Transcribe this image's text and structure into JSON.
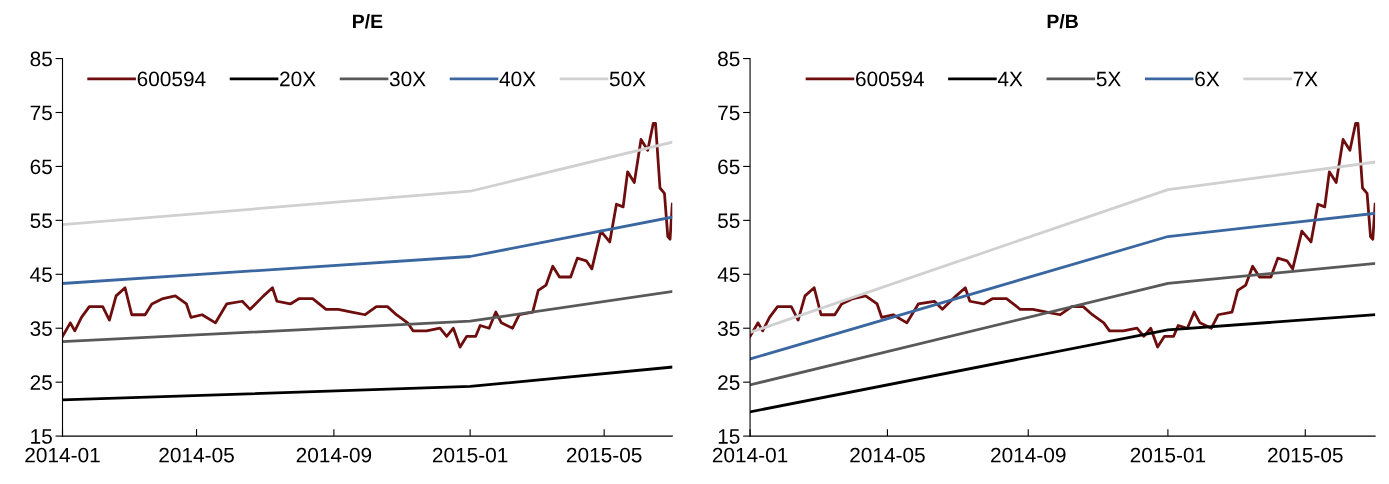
{
  "chart_data": [
    {
      "type": "line",
      "title": "P/E",
      "xlim": [
        "2014-01-01",
        "2015-07-01"
      ],
      "ylim": [
        15,
        85
      ],
      "yticks": [
        15,
        25,
        35,
        45,
        55,
        65,
        75,
        85
      ],
      "xticks": [
        {
          "value": "2014-01-01",
          "label": "2014-01"
        },
        {
          "value": "2014-05-01",
          "label": "2014-05"
        },
        {
          "value": "2014-09-01",
          "label": "2014-09"
        },
        {
          "value": "2015-01-01",
          "label": "2015-01"
        },
        {
          "value": "2015-05-01",
          "label": "2015-05"
        }
      ],
      "grid": false,
      "legend": "top",
      "line_style": "solid",
      "marker": "none",
      "series": [
        {
          "name": "600594",
          "color": "#6e0d0d",
          "x": [
            "2014-01-01",
            "2014-01-08",
            "2014-01-12",
            "2014-01-18",
            "2014-01-25",
            "2014-02-06",
            "2014-02-12",
            "2014-02-18",
            "2014-02-26",
            "2014-03-04",
            "2014-03-16",
            "2014-03-22",
            "2014-04-01",
            "2014-04-12",
            "2014-04-22",
            "2014-04-26",
            "2014-05-06",
            "2014-05-18",
            "2014-05-28",
            "2014-06-11",
            "2014-06-18",
            "2014-06-30",
            "2014-07-08",
            "2014-07-12",
            "2014-07-24",
            "2014-08-01",
            "2014-08-13",
            "2014-08-25",
            "2014-09-05",
            "2014-09-17",
            "2014-09-29",
            "2014-10-09",
            "2014-10-19",
            "2014-10-27",
            "2014-11-06",
            "2014-11-11",
            "2014-11-23",
            "2014-12-05",
            "2014-12-11",
            "2014-12-17",
            "2014-12-23",
            "2014-12-29",
            "2015-01-06",
            "2015-01-10",
            "2015-01-18",
            "2015-01-24",
            "2015-01-29",
            "2015-02-08",
            "2015-02-14",
            "2015-02-26",
            "2015-03-03",
            "2015-03-10",
            "2015-03-16",
            "2015-03-22",
            "2015-04-01",
            "2015-04-07",
            "2015-04-15",
            "2015-04-20",
            "2015-04-28",
            "2015-05-06",
            "2015-05-12",
            "2015-05-18",
            "2015-05-22",
            "2015-05-28",
            "2015-06-03",
            "2015-06-09",
            "2015-06-14",
            "2015-06-16",
            "2015-06-20",
            "2015-06-24",
            "2015-06-27",
            "2015-06-29",
            "2015-07-01"
          ],
          "values": [
            33.5,
            36,
            34.5,
            37,
            39,
            39,
            36.5,
            41,
            42.5,
            37.5,
            37.5,
            39.5,
            40.5,
            41,
            39.5,
            37,
            37.5,
            36,
            39.5,
            40,
            38.5,
            41,
            42.5,
            40,
            39.5,
            40.5,
            40.5,
            38.5,
            38.5,
            38,
            37.5,
            39,
            39,
            37.5,
            36,
            34.5,
            34.5,
            35,
            33.5,
            35,
            31.5,
            33.5,
            33.5,
            35.5,
            35,
            38,
            36,
            35,
            37.5,
            38,
            42,
            43,
            46.5,
            44.5,
            44.5,
            48,
            47.5,
            46,
            53,
            51,
            58,
            57.5,
            64,
            62,
            70,
            68,
            73,
            73,
            61,
            60,
            52,
            51.5,
            58
          ]
        },
        {
          "name": "20X",
          "color": "#000000",
          "x": [
            "2014-01-01",
            "2015-01-01",
            "2015-07-01"
          ],
          "values": [
            21.7,
            24.2,
            27.8
          ]
        },
        {
          "name": "30X",
          "color": "#595959",
          "x": [
            "2014-01-01",
            "2015-01-01",
            "2015-07-01"
          ],
          "values": [
            32.5,
            36.3,
            41.8
          ]
        },
        {
          "name": "40X",
          "color": "#3a67a0",
          "x": [
            "2014-01-01",
            "2015-01-01",
            "2015-07-01"
          ],
          "values": [
            43.3,
            48.3,
            55.6
          ]
        },
        {
          "name": "50X",
          "color": "#d0d0d0",
          "x": [
            "2014-01-01",
            "2015-01-01",
            "2015-07-01"
          ],
          "values": [
            54.2,
            60.4,
            69.5
          ]
        }
      ]
    },
    {
      "type": "line",
      "title": "P/B",
      "xlim": [
        "2014-01-01",
        "2015-07-01"
      ],
      "ylim": [
        15,
        85
      ],
      "yticks": [
        15,
        25,
        35,
        45,
        55,
        65,
        75,
        85
      ],
      "xticks": [
        {
          "value": "2014-01-01",
          "label": "2014-01"
        },
        {
          "value": "2014-05-01",
          "label": "2014-05"
        },
        {
          "value": "2014-09-01",
          "label": "2014-09"
        },
        {
          "value": "2015-01-01",
          "label": "2015-01"
        },
        {
          "value": "2015-05-01",
          "label": "2015-05"
        }
      ],
      "grid": false,
      "legend": "top",
      "line_style": "solid",
      "marker": "none",
      "series": [
        {
          "name": "600594",
          "color": "#6e0d0d",
          "x": [
            "2014-01-01",
            "2014-01-08",
            "2014-01-12",
            "2014-01-18",
            "2014-01-25",
            "2014-02-06",
            "2014-02-12",
            "2014-02-18",
            "2014-02-26",
            "2014-03-04",
            "2014-03-16",
            "2014-03-22",
            "2014-04-01",
            "2014-04-12",
            "2014-04-22",
            "2014-04-26",
            "2014-05-06",
            "2014-05-18",
            "2014-05-28",
            "2014-06-11",
            "2014-06-18",
            "2014-06-30",
            "2014-07-08",
            "2014-07-12",
            "2014-07-24",
            "2014-08-01",
            "2014-08-13",
            "2014-08-25",
            "2014-09-05",
            "2014-09-17",
            "2014-09-29",
            "2014-10-09",
            "2014-10-19",
            "2014-10-27",
            "2014-11-06",
            "2014-11-11",
            "2014-11-23",
            "2014-12-05",
            "2014-12-11",
            "2014-12-17",
            "2014-12-23",
            "2014-12-29",
            "2015-01-06",
            "2015-01-10",
            "2015-01-18",
            "2015-01-24",
            "2015-01-29",
            "2015-02-08",
            "2015-02-14",
            "2015-02-26",
            "2015-03-03",
            "2015-03-10",
            "2015-03-16",
            "2015-03-22",
            "2015-04-01",
            "2015-04-07",
            "2015-04-15",
            "2015-04-20",
            "2015-04-28",
            "2015-05-06",
            "2015-05-12",
            "2015-05-18",
            "2015-05-22",
            "2015-05-28",
            "2015-06-03",
            "2015-06-09",
            "2015-06-14",
            "2015-06-16",
            "2015-06-20",
            "2015-06-24",
            "2015-06-27",
            "2015-06-29",
            "2015-07-01"
          ],
          "values": [
            33.5,
            36,
            34.5,
            37,
            39,
            39,
            36.5,
            41,
            42.5,
            37.5,
            37.5,
            39.5,
            40.5,
            41,
            39.5,
            37,
            37.5,
            36,
            39.5,
            40,
            38.5,
            41,
            42.5,
            40,
            39.5,
            40.5,
            40.5,
            38.5,
            38.5,
            38,
            37.5,
            39,
            39,
            37.5,
            36,
            34.5,
            34.5,
            35,
            33.5,
            35,
            31.5,
            33.5,
            33.5,
            35.5,
            35,
            38,
            36,
            35,
            37.5,
            38,
            42,
            43,
            46.5,
            44.5,
            44.5,
            48,
            47.5,
            46,
            53,
            51,
            58,
            57.5,
            64,
            62,
            70,
            68,
            73,
            73,
            61,
            60,
            52,
            51.5,
            58
          ]
        },
        {
          "name": "4X",
          "color": "#000000",
          "x": [
            "2014-01-01",
            "2015-01-01",
            "2015-07-01"
          ],
          "values": [
            19.5,
            34.7,
            37.5
          ]
        },
        {
          "name": "5X",
          "color": "#595959",
          "x": [
            "2014-01-01",
            "2015-01-01",
            "2015-07-01"
          ],
          "values": [
            24.5,
            43.3,
            47
          ]
        },
        {
          "name": "6X",
          "color": "#3a67a0",
          "x": [
            "2014-01-01",
            "2015-01-01",
            "2015-07-01"
          ],
          "values": [
            29.3,
            52,
            56.3
          ]
        },
        {
          "name": "7X",
          "color": "#d0d0d0",
          "x": [
            "2014-01-01",
            "2015-01-01",
            "2015-07-01"
          ],
          "values": [
            34.2,
            60.7,
            65.8
          ]
        }
      ]
    }
  ]
}
